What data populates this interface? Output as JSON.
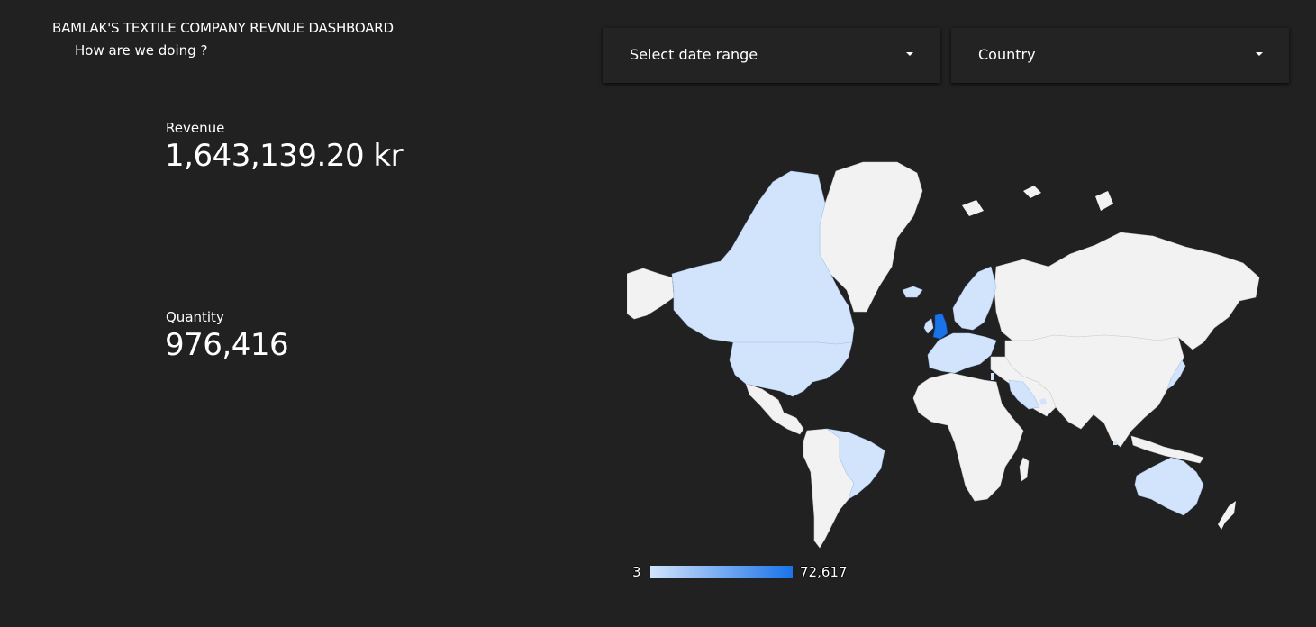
{
  "header": {
    "title": "BAMLAK'S TEXTILE COMPANY REVNUE DASHBOARD",
    "subtitle": "How are we doing ?"
  },
  "filters": {
    "date_range_label": "Select date range",
    "country_label": "Country"
  },
  "kpis": {
    "revenue_label": "Revenue",
    "revenue_value": "1,643,139.20 kr",
    "quantity_label": "Quantity",
    "quantity_value": "976,416"
  },
  "map": {
    "legend_min": "3",
    "legend_max": "72,617",
    "colors": {
      "background": "#212121",
      "land_no_data": "#f2f2f2",
      "scale_low": "#d2e3fc",
      "scale_high": "#1a73e8"
    },
    "highlighted_countries": [
      "Canada",
      "United States",
      "Brazil",
      "Australia",
      "Japan",
      "Saudi Arabia",
      "Iceland",
      "Norway",
      "Sweden",
      "Finland",
      "United Kingdom",
      "Ireland",
      "France",
      "Spain",
      "Portugal",
      "Germany",
      "Netherlands",
      "Belgium",
      "Switzerland",
      "Austria",
      "Italy",
      "Denmark",
      "Poland",
      "Czech Republic",
      "Greece",
      "Cyprus",
      "Malta",
      "Lithuania",
      "Israel",
      "Bahrain",
      "United Arab Emirates",
      "Lebanon",
      "Singapore"
    ],
    "top_country": "United Kingdom"
  }
}
